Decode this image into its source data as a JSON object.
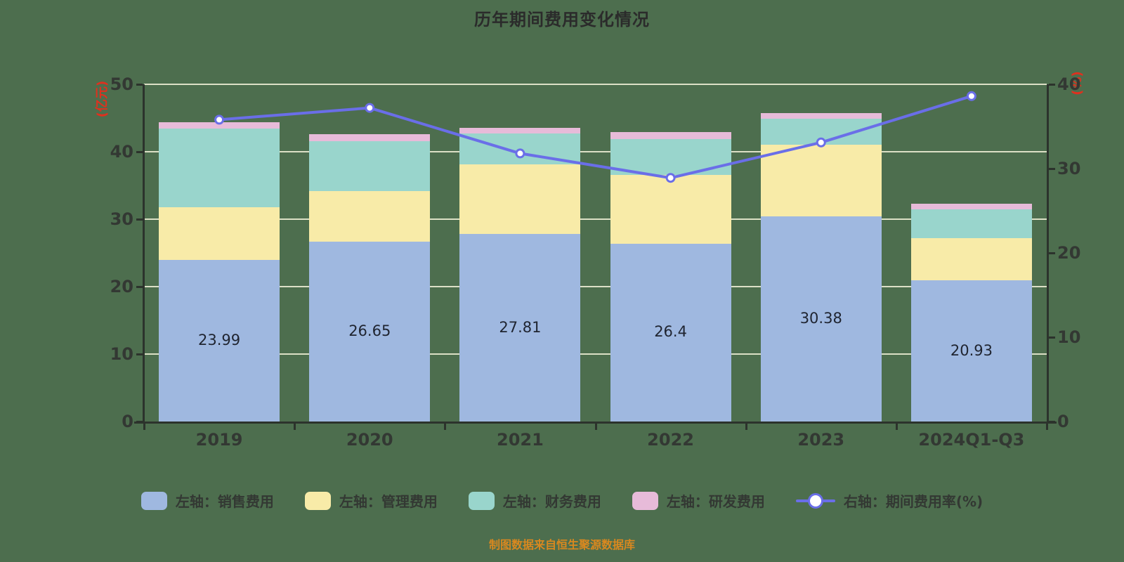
{
  "title": "历年期间费用变化情况",
  "caption": "制图数据来自恒生聚源数据库",
  "colors": {
    "background": "#4d6e4e",
    "gridline": "#dce0c6",
    "axis": "#2c332c",
    "tick_text": "#333833",
    "title_text": "#2b2b2b",
    "unit_text": "#e0301e",
    "caption_text": "#d9881f",
    "bar_value_text": "#1f2430"
  },
  "chart_data": {
    "type": "bar",
    "subtype": "stacked-bar-with-line",
    "categories": [
      "2019",
      "2020",
      "2021",
      "2022",
      "2023",
      "2024Q1-Q3"
    ],
    "series": [
      {
        "name": "左轴：销售费用",
        "type": "bar",
        "axis": "left",
        "color": "#9fb8e0",
        "values": [
          23.99,
          26.65,
          27.81,
          26.4,
          30.38,
          20.93
        ],
        "value_labels": [
          "23.99",
          "26.65",
          "27.81",
          "26.4",
          "30.38",
          "20.93"
        ],
        "show_labels": true
      },
      {
        "name": "左轴：管理费用",
        "type": "bar",
        "axis": "left",
        "color": "#f8eba8",
        "values": [
          7.8,
          7.5,
          10.3,
          10.2,
          10.7,
          6.3
        ],
        "show_labels": false
      },
      {
        "name": "左轴：财务费用",
        "type": "bar",
        "axis": "left",
        "color": "#99d5cc",
        "values": [
          11.6,
          7.4,
          4.6,
          5.3,
          3.8,
          4.2
        ],
        "show_labels": false
      },
      {
        "name": "左轴：研发费用",
        "type": "bar",
        "axis": "left",
        "color": "#e7bbd9",
        "values": [
          1.0,
          1.1,
          0.8,
          1.0,
          0.8,
          0.9
        ],
        "show_labels": false
      },
      {
        "name": "右轴：期间费用率(%)",
        "type": "line",
        "axis": "right",
        "color": "#6a6ee8",
        "marker": "circle-white-fill",
        "values": [
          35.8,
          37.2,
          31.8,
          28.9,
          33.1,
          38.6
        ],
        "show_labels": false
      }
    ],
    "left_axis": {
      "label": "(亿元)",
      "min": 0,
      "max": 50,
      "ticks": [
        0,
        10,
        20,
        30,
        40,
        50
      ]
    },
    "right_axis": {
      "label": "(%)",
      "min": 0,
      "max": 40,
      "ticks": [
        0,
        10,
        20,
        30,
        40
      ]
    },
    "grid": true,
    "legend_position": "bottom"
  }
}
